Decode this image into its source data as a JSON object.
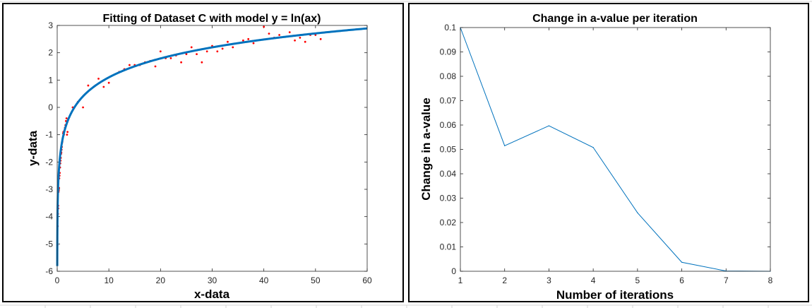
{
  "chart_data": [
    {
      "type": "scatter",
      "title": "Fitting of Dataset C with model y = ln(ax)",
      "xlabel": "x-data",
      "ylabel": "y-data",
      "xlim": [
        0,
        60
      ],
      "ylim": [
        -6,
        3
      ],
      "xticks": [
        0,
        10,
        20,
        30,
        40,
        50,
        60
      ],
      "yticks": [
        -6,
        -5,
        -4,
        -3,
        -2,
        -1,
        0,
        1,
        2,
        3
      ],
      "grid": false,
      "points": [
        [
          0.05,
          -5.05
        ],
        [
          0.1,
          -4.35
        ],
        [
          0.15,
          -3.9
        ],
        [
          0.2,
          -3.7
        ],
        [
          0.2,
          -3.6
        ],
        [
          0.25,
          -3.1
        ],
        [
          0.3,
          -3.05
        ],
        [
          0.35,
          -2.95
        ],
        [
          0.4,
          -2.6
        ],
        [
          0.45,
          -2.5
        ],
        [
          0.5,
          -2.4
        ],
        [
          0.55,
          -2.2
        ],
        [
          0.6,
          -2.05
        ],
        [
          0.65,
          -1.95
        ],
        [
          0.7,
          -1.85
        ],
        [
          0.75,
          -1.7
        ],
        [
          0.8,
          -1.65
        ],
        [
          0.85,
          -1.55
        ],
        [
          0.9,
          -1.45
        ],
        [
          0.95,
          -1.3
        ],
        [
          1.0,
          -1.25
        ],
        [
          1.05,
          -1.15
        ],
        [
          1.1,
          -1.1
        ],
        [
          1.15,
          -0.95
        ],
        [
          1.2,
          -0.9
        ],
        [
          1.3,
          -1.0
        ],
        [
          1.4,
          -0.85
        ],
        [
          1.5,
          -0.75
        ],
        [
          1.6,
          -0.65
        ],
        [
          1.7,
          -0.5
        ],
        [
          1.8,
          -0.4
        ],
        [
          1.9,
          -1.0
        ],
        [
          2.0,
          -0.9
        ],
        [
          3.0,
          0.0
        ],
        [
          4.0,
          0.2
        ],
        [
          5.0,
          0.0
        ],
        [
          6.0,
          0.8
        ],
        [
          8.0,
          1.05
        ],
        [
          9.0,
          0.75
        ],
        [
          10.0,
          0.9
        ],
        [
          12.0,
          1.3
        ],
        [
          13.0,
          1.4
        ],
        [
          14.0,
          1.55
        ],
        [
          15.0,
          1.55
        ],
        [
          16.0,
          1.55
        ],
        [
          17.0,
          1.65
        ],
        [
          18.0,
          1.7
        ],
        [
          19.0,
          1.5
        ],
        [
          20.0,
          2.05
        ],
        [
          21.0,
          1.8
        ],
        [
          22.0,
          1.8
        ],
        [
          23.0,
          1.9
        ],
        [
          24.0,
          1.65
        ],
        [
          25.0,
          1.95
        ],
        [
          26.0,
          2.2
        ],
        [
          27.0,
          1.95
        ],
        [
          28.0,
          1.65
        ],
        [
          29.0,
          2.05
        ],
        [
          30.0,
          2.25
        ],
        [
          31.0,
          2.05
        ],
        [
          32.0,
          2.15
        ],
        [
          33.0,
          2.4
        ],
        [
          34.0,
          2.2
        ],
        [
          35.0,
          2.35
        ],
        [
          36.0,
          2.45
        ],
        [
          37.0,
          2.5
        ],
        [
          38.0,
          2.35
        ],
        [
          40.0,
          2.95
        ],
        [
          41.0,
          2.7
        ],
        [
          42.0,
          2.55
        ],
        [
          43.0,
          2.65
        ],
        [
          45.0,
          2.75
        ],
        [
          46.0,
          2.45
        ],
        [
          47.0,
          2.55
        ],
        [
          48.0,
          2.4
        ],
        [
          49.0,
          2.65
        ],
        [
          50.0,
          2.65
        ],
        [
          51.0,
          2.5
        ]
      ],
      "fit_curve": {
        "model": "y = ln(ax)",
        "a": 0.3
      },
      "colors": {
        "points": "#ff0000",
        "curve": "#0072bd",
        "axis": "#262626"
      }
    },
    {
      "type": "line",
      "title": "Change in a-value per iteration",
      "xlabel": "Number of iterations",
      "ylabel": "Change in a-value",
      "xlim": [
        1,
        8
      ],
      "ylim": [
        0,
        0.1
      ],
      "xticks": [
        1,
        2,
        3,
        4,
        5,
        6,
        7,
        8
      ],
      "yticks": [
        0,
        0.01,
        0.02,
        0.03,
        0.04,
        0.05,
        0.06,
        0.07,
        0.08,
        0.09,
        0.1
      ],
      "grid": false,
      "x": [
        1,
        2,
        3,
        4,
        5,
        6,
        7,
        8
      ],
      "values": [
        0.1,
        0.0515,
        0.0597,
        0.0508,
        0.024,
        0.0037,
        0.0001,
        0.0
      ],
      "colors": {
        "line": "#0072bd",
        "axis": "#262626"
      }
    }
  ]
}
